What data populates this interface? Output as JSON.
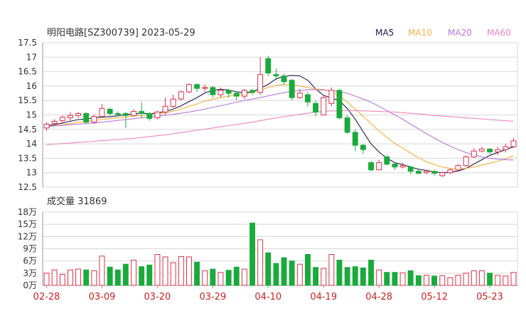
{
  "header": {
    "title": "明阳电路[SZ300739] 2023-05-29",
    "legend": [
      {
        "label": "MA5",
        "color": "#1a1a4a"
      },
      {
        "label": "MA10",
        "color": "#f5b041"
      },
      {
        "label": "MA20",
        "color": "#bb77dd"
      },
      {
        "label": "MA60",
        "color": "#ee88bb"
      }
    ]
  },
  "volume_header": {
    "label": "成交量 31869"
  },
  "colors": {
    "up": "#e0304a",
    "down": "#1aaa3c",
    "grid": "#d8d8d8",
    "axis": "#999999",
    "date": "#cc2222"
  },
  "chart_data": [
    {
      "type": "candlestick",
      "title": "明阳电路[SZ300739] 2023-05-29",
      "ylim": [
        12.5,
        17.5
      ],
      "y_ticks": [
        "17.5",
        "17",
        "16.5",
        "16",
        "15.5",
        "15",
        "14.5",
        "14",
        "13.5",
        "13",
        "12.5"
      ],
      "x_tick_labels": [
        {
          "i": 0,
          "label": "02-28"
        },
        {
          "i": 7,
          "label": "03-09"
        },
        {
          "i": 14,
          "label": "03-20"
        },
        {
          "i": 21,
          "label": "03-29"
        },
        {
          "i": 28,
          "label": "04-10"
        },
        {
          "i": 35,
          "label": "04-19"
        },
        {
          "i": 42,
          "label": "04-28"
        },
        {
          "i": 49,
          "label": "05-12"
        },
        {
          "i": 56,
          "label": "05-23"
        }
      ],
      "ohlc": [
        [
          14.55,
          14.68,
          14.45,
          14.75
        ],
        [
          14.7,
          14.78,
          14.62,
          14.85
        ],
        [
          14.8,
          14.92,
          14.72,
          14.98
        ],
        [
          14.9,
          14.98,
          14.8,
          15.1
        ],
        [
          14.98,
          15.05,
          14.9,
          15.1
        ],
        [
          15.05,
          14.75,
          14.7,
          15.1
        ],
        [
          14.75,
          14.95,
          14.7,
          15.0
        ],
        [
          14.95,
          15.22,
          14.9,
          15.38
        ],
        [
          15.2,
          15.05,
          14.98,
          15.25
        ],
        [
          15.05,
          15.02,
          14.95,
          15.12
        ],
        [
          15.05,
          14.98,
          14.55,
          15.1
        ],
        [
          14.98,
          15.12,
          14.95,
          15.2
        ],
        [
          15.12,
          15.05,
          14.9,
          15.45
        ],
        [
          15.05,
          14.88,
          14.8,
          15.1
        ],
        [
          14.9,
          15.1,
          14.85,
          15.15
        ],
        [
          15.1,
          15.3,
          15.0,
          15.6
        ],
        [
          15.3,
          15.55,
          15.25,
          15.7
        ],
        [
          15.55,
          15.8,
          15.5,
          15.85
        ],
        [
          15.8,
          16.05,
          15.75,
          16.1
        ],
        [
          16.05,
          15.92,
          15.8,
          16.1
        ],
        [
          15.92,
          15.95,
          15.8,
          16.05
        ],
        [
          15.95,
          15.7,
          15.6,
          16.0
        ],
        [
          15.7,
          15.85,
          15.6,
          15.95
        ],
        [
          15.85,
          15.75,
          15.6,
          15.9
        ],
        [
          15.75,
          15.65,
          15.5,
          15.82
        ],
        [
          15.65,
          15.85,
          15.55,
          15.9
        ],
        [
          15.85,
          15.78,
          15.7,
          15.9
        ],
        [
          15.78,
          16.4,
          15.7,
          17.0
        ],
        [
          16.95,
          16.45,
          16.35,
          17.05
        ],
        [
          16.4,
          16.35,
          16.2,
          16.6
        ],
        [
          16.35,
          16.15,
          16.05,
          16.42
        ],
        [
          16.2,
          15.6,
          15.5,
          16.25
        ],
        [
          15.6,
          15.75,
          15.55,
          15.9
        ],
        [
          15.7,
          15.45,
          15.3,
          15.8
        ],
        [
          15.4,
          15.1,
          14.95,
          15.5
        ],
        [
          15.0,
          15.6,
          14.98,
          15.7
        ],
        [
          15.4,
          15.85,
          15.3,
          15.95
        ],
        [
          15.85,
          14.9,
          14.85,
          15.9
        ],
        [
          14.9,
          14.4,
          14.35,
          15.0
        ],
        [
          14.4,
          13.95,
          13.75,
          14.5
        ],
        [
          13.95,
          13.8,
          13.65,
          14.0
        ],
        [
          13.35,
          13.1,
          13.05,
          13.4
        ],
        [
          13.1,
          13.35,
          13.1,
          13.45
        ],
        [
          13.55,
          13.3,
          13.25,
          13.6
        ],
        [
          13.3,
          13.2,
          13.1,
          13.35
        ],
        [
          13.2,
          13.25,
          13.15,
          13.35
        ],
        [
          13.2,
          13.05,
          12.95,
          13.25
        ],
        [
          13.05,
          12.98,
          12.95,
          13.1
        ],
        [
          13.0,
          13.05,
          12.95,
          13.1
        ],
        [
          13.05,
          12.98,
          12.9,
          13.1
        ],
        [
          12.9,
          13.0,
          12.85,
          13.05
        ],
        [
          13.0,
          13.1,
          12.95,
          13.15
        ],
        [
          13.1,
          13.25,
          13.05,
          13.3
        ],
        [
          13.25,
          13.55,
          13.2,
          13.6
        ],
        [
          13.55,
          13.75,
          13.5,
          13.85
        ],
        [
          13.75,
          13.82,
          13.7,
          13.9
        ],
        [
          13.82,
          13.72,
          13.65,
          13.85
        ],
        [
          13.72,
          13.8,
          13.6,
          13.9
        ],
        [
          13.8,
          13.9,
          13.7,
          14.0
        ],
        [
          13.9,
          14.1,
          13.85,
          14.2
        ]
      ],
      "ma5": [
        14.62,
        14.67,
        14.72,
        14.78,
        14.84,
        14.86,
        14.9,
        14.92,
        14.94,
        14.97,
        15.01,
        15.03,
        15.06,
        15.04,
        15.07,
        15.12,
        15.2,
        15.32,
        15.46,
        15.6,
        15.76,
        15.85,
        15.89,
        15.86,
        15.8,
        15.77,
        15.8,
        15.92,
        16.06,
        16.25,
        16.33,
        16.37,
        16.35,
        16.2,
        15.9,
        15.68,
        15.58,
        15.5,
        15.22,
        14.85,
        14.42,
        14.0,
        13.72,
        13.5,
        13.35,
        13.28,
        13.2,
        13.12,
        13.08,
        13.03,
        13.0,
        13.02,
        13.06,
        13.15,
        13.3,
        13.45,
        13.6,
        13.7,
        13.8,
        13.9
      ],
      "ma10": [
        14.6,
        14.63,
        14.66,
        14.7,
        14.74,
        14.78,
        14.81,
        14.84,
        14.87,
        14.9,
        14.93,
        14.96,
        14.98,
        15.0,
        15.03,
        15.08,
        15.13,
        15.2,
        15.3,
        15.38,
        15.48,
        15.55,
        15.6,
        15.65,
        15.68,
        15.72,
        15.78,
        15.85,
        15.95,
        16.02,
        16.05,
        16.05,
        16.0,
        15.95,
        15.9,
        15.88,
        15.8,
        15.65,
        15.45,
        15.2,
        14.95,
        14.7,
        14.45,
        14.22,
        14.02,
        13.85,
        13.68,
        13.52,
        13.38,
        13.28,
        13.2,
        13.15,
        13.13,
        13.15,
        13.2,
        13.27,
        13.33,
        13.4,
        13.48,
        13.58
      ],
      "ma20": [
        14.6,
        14.62,
        14.64,
        14.66,
        14.68,
        14.7,
        14.72,
        14.75,
        14.78,
        14.81,
        14.84,
        14.87,
        14.9,
        14.93,
        14.96,
        14.99,
        15.02,
        15.06,
        15.1,
        15.15,
        15.2,
        15.26,
        15.32,
        15.38,
        15.44,
        15.5,
        15.55,
        15.6,
        15.66,
        15.72,
        15.77,
        15.82,
        15.85,
        15.87,
        15.87,
        15.86,
        15.84,
        15.81,
        15.75,
        15.65,
        15.55,
        15.44,
        15.3,
        15.15,
        15.0,
        14.85,
        14.68,
        14.52,
        14.35,
        14.2,
        14.05,
        13.92,
        13.8,
        13.7,
        13.62,
        13.55,
        13.5,
        13.47,
        13.45,
        13.44
      ],
      "ma60": [
        13.97,
        13.99,
        14.01,
        14.03,
        14.05,
        14.07,
        14.09,
        14.11,
        14.13,
        14.15,
        14.17,
        14.19,
        14.22,
        14.25,
        14.28,
        14.31,
        14.35,
        14.39,
        14.43,
        14.47,
        14.51,
        14.55,
        14.59,
        14.63,
        14.67,
        14.71,
        14.75,
        14.8,
        14.85,
        14.9,
        14.94,
        14.98,
        15.02,
        15.06,
        15.1,
        15.12,
        15.14,
        15.15,
        15.15,
        15.15,
        15.14,
        15.13,
        15.12,
        15.11,
        15.1,
        15.08,
        15.06,
        15.04,
        15.01,
        14.98,
        14.96,
        14.94,
        14.92,
        14.9,
        14.88,
        14.86,
        14.84,
        14.82,
        14.8,
        14.78
      ]
    },
    {
      "type": "bar",
      "title": "成交量 31869",
      "ylim": [
        0,
        180000
      ],
      "y_ticks": [
        "18万",
        "15万",
        "12万",
        "9万",
        "6万",
        "3万",
        "0万"
      ],
      "values": [
        30000,
        38000,
        27000,
        38000,
        40000,
        38000,
        36000,
        72000,
        45000,
        38000,
        52000,
        62000,
        46000,
        50000,
        76000,
        70000,
        56000,
        71000,
        70000,
        57000,
        36000,
        40000,
        32000,
        37000,
        45000,
        40000,
        153000,
        112000,
        80000,
        54000,
        68000,
        60000,
        52000,
        76000,
        44000,
        42000,
        76000,
        62000,
        44000,
        46000,
        43000,
        62000,
        38000,
        32000,
        32000,
        31000,
        36000,
        24000,
        25000,
        23000,
        24000,
        19000,
        25000,
        30000,
        36000,
        36000,
        30000,
        25000,
        23000,
        31869
      ]
    }
  ]
}
